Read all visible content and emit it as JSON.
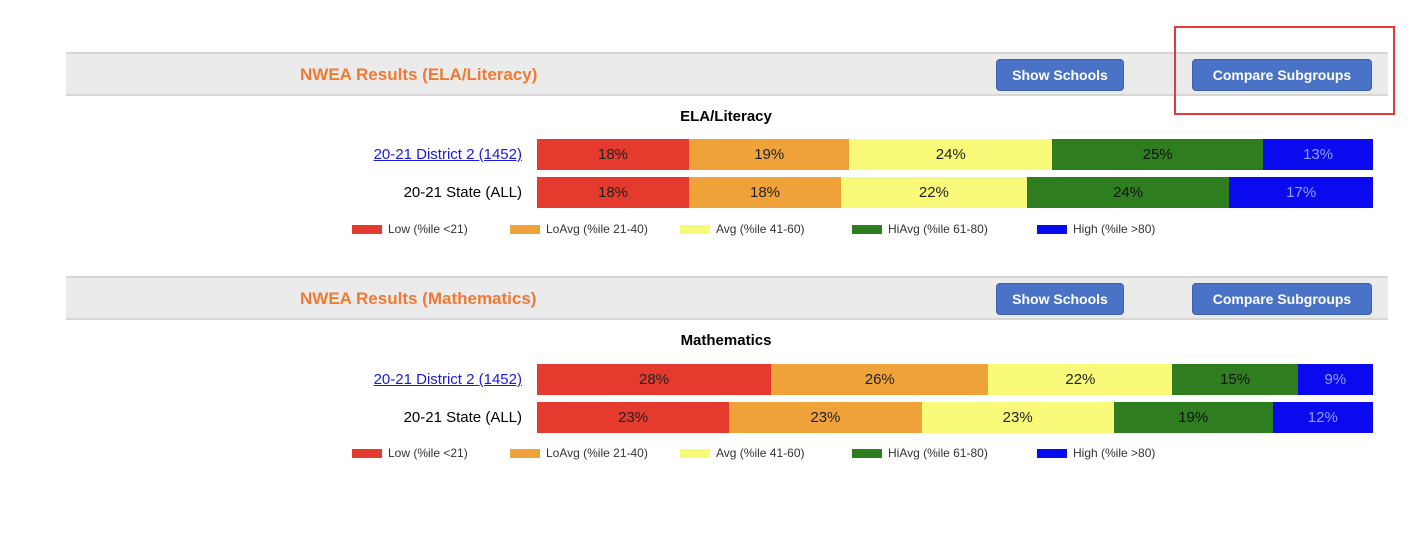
{
  "colors": {
    "low": "#e53a2e",
    "loavg": "#f0a23a",
    "avg": "#fafa7a",
    "hiavg": "#2e7d1f",
    "high": "#0a0aee"
  },
  "legend": [
    {
      "key": "low",
      "label": "Low (%ile <21)"
    },
    {
      "key": "loavg",
      "label": "LoAvg (%ile 21-40)"
    },
    {
      "key": "avg",
      "label": "Avg (%ile 41-60)"
    },
    {
      "key": "hiavg",
      "label": "HiAvg (%ile 61-80)"
    },
    {
      "key": "high",
      "label": "High (%ile >80)"
    }
  ],
  "sections": [
    {
      "title": "NWEA Results (ELA/Literacy)",
      "show_schools_label": "Show Schools",
      "compare_subgroups_label": "Compare Subgroups",
      "chart_title": "ELA/Literacy",
      "rows": [
        {
          "label": "20-21 District 2 (1452)",
          "is_link": true,
          "values": [
            18,
            19,
            24,
            25,
            13
          ]
        },
        {
          "label": "20-21 State (ALL)",
          "is_link": false,
          "values": [
            18,
            18,
            22,
            24,
            17
          ]
        }
      ]
    },
    {
      "title": "NWEA Results (Mathematics)",
      "show_schools_label": "Show Schools",
      "compare_subgroups_label": "Compare Subgroups",
      "chart_title": "Mathematics",
      "rows": [
        {
          "label": "20-21 District 2 (1452)",
          "is_link": true,
          "values": [
            28,
            26,
            22,
            15,
            9
          ]
        },
        {
          "label": "20-21 State (ALL)",
          "is_link": false,
          "values": [
            23,
            23,
            23,
            19,
            12
          ]
        }
      ]
    }
  ]
}
